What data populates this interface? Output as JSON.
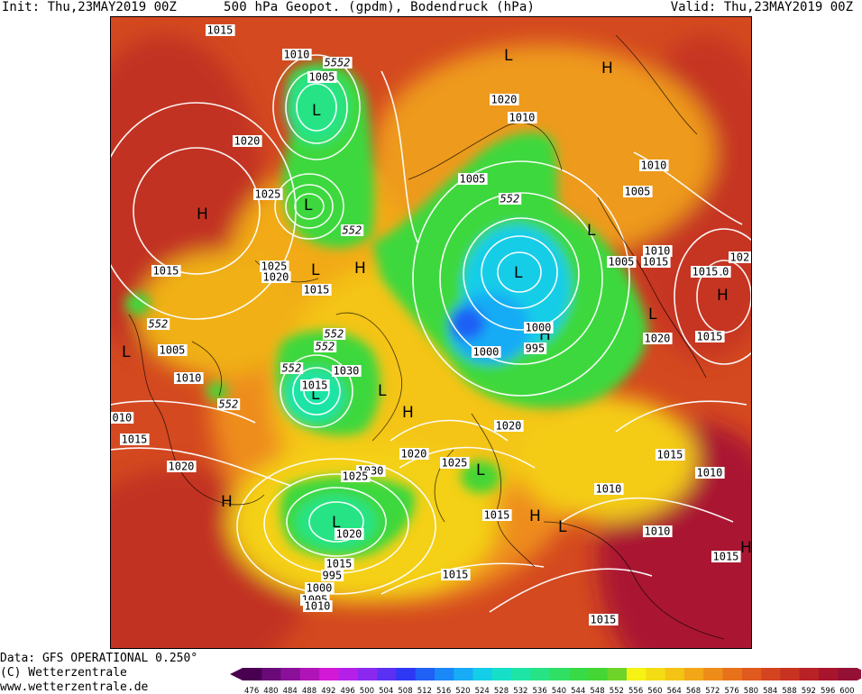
{
  "header": {
    "init": "Init: Thu,23MAY2019 00Z",
    "title": "500 hPa Geopot. (gpdm), Bodendruck (hPa)",
    "valid": "Valid: Thu,23MAY2019 00Z"
  },
  "footer": {
    "data_source": "Data: GFS OPERATIONAL 0.250°",
    "copyright": "(C) Wetterzentrale",
    "url": "www.wetterzentrale.de"
  },
  "legend": {
    "ticks": [
      "476",
      "480",
      "484",
      "488",
      "492",
      "496",
      "500",
      "504",
      "508",
      "512",
      "516",
      "520",
      "524",
      "528",
      "532",
      "536",
      "540",
      "544",
      "548",
      "552",
      "556",
      "560",
      "564",
      "568",
      "572",
      "576",
      "580",
      "584",
      "588",
      "592",
      "596",
      "600"
    ],
    "colors": [
      "#4a0050",
      "#6a0a78",
      "#8a109a",
      "#b014b8",
      "#d21ad6",
      "#b420e8",
      "#8a28f0",
      "#5a30f2",
      "#2c38f4",
      "#1f60f5",
      "#1a88f6",
      "#17acf5",
      "#14cde8",
      "#16dfc8",
      "#1ee4a6",
      "#26e485",
      "#2fe065",
      "#38da47",
      "#44d634",
      "#6ed42a",
      "#f5f214",
      "#f4dc14",
      "#f4c414",
      "#f2a618",
      "#ee8c1a",
      "#e8721c",
      "#e05a1e",
      "#d44420",
      "#c83220",
      "#b82226",
      "#a8142e",
      "#941034"
    ]
  },
  "map": {
    "labels": {
      "highs": [
        "H",
        "H",
        "H",
        "H",
        "H",
        "H",
        "H",
        "H",
        "H"
      ],
      "lows": [
        "L",
        "L",
        "L",
        "L",
        "L",
        "L",
        "L",
        "L",
        "L",
        "L",
        "L",
        "L",
        "L"
      ],
      "pressure": [
        "1015",
        "1010",
        "5552",
        "1005",
        "1020",
        "1025",
        "552",
        "1015",
        "1025",
        "1020",
        "1015",
        "552",
        "1005",
        "1010",
        "552",
        "010",
        "1015",
        "1020",
        "1015",
        "552",
        "1030",
        "1020",
        "1025",
        "1030",
        "1025",
        "1020",
        "1015",
        "995",
        "1000",
        "1005",
        "1010",
        "1015",
        "1020",
        "1010",
        "1005",
        "552",
        "1000",
        "995",
        "1010",
        "1005",
        "1010",
        "1005",
        "1015",
        "1010",
        "1015",
        "1020",
        "1000",
        "1015",
        "1020",
        "552",
        "552",
        "1015",
        "1015",
        "1010",
        "1010",
        "1010",
        "1015",
        "1015",
        "102"
      ]
    }
  }
}
